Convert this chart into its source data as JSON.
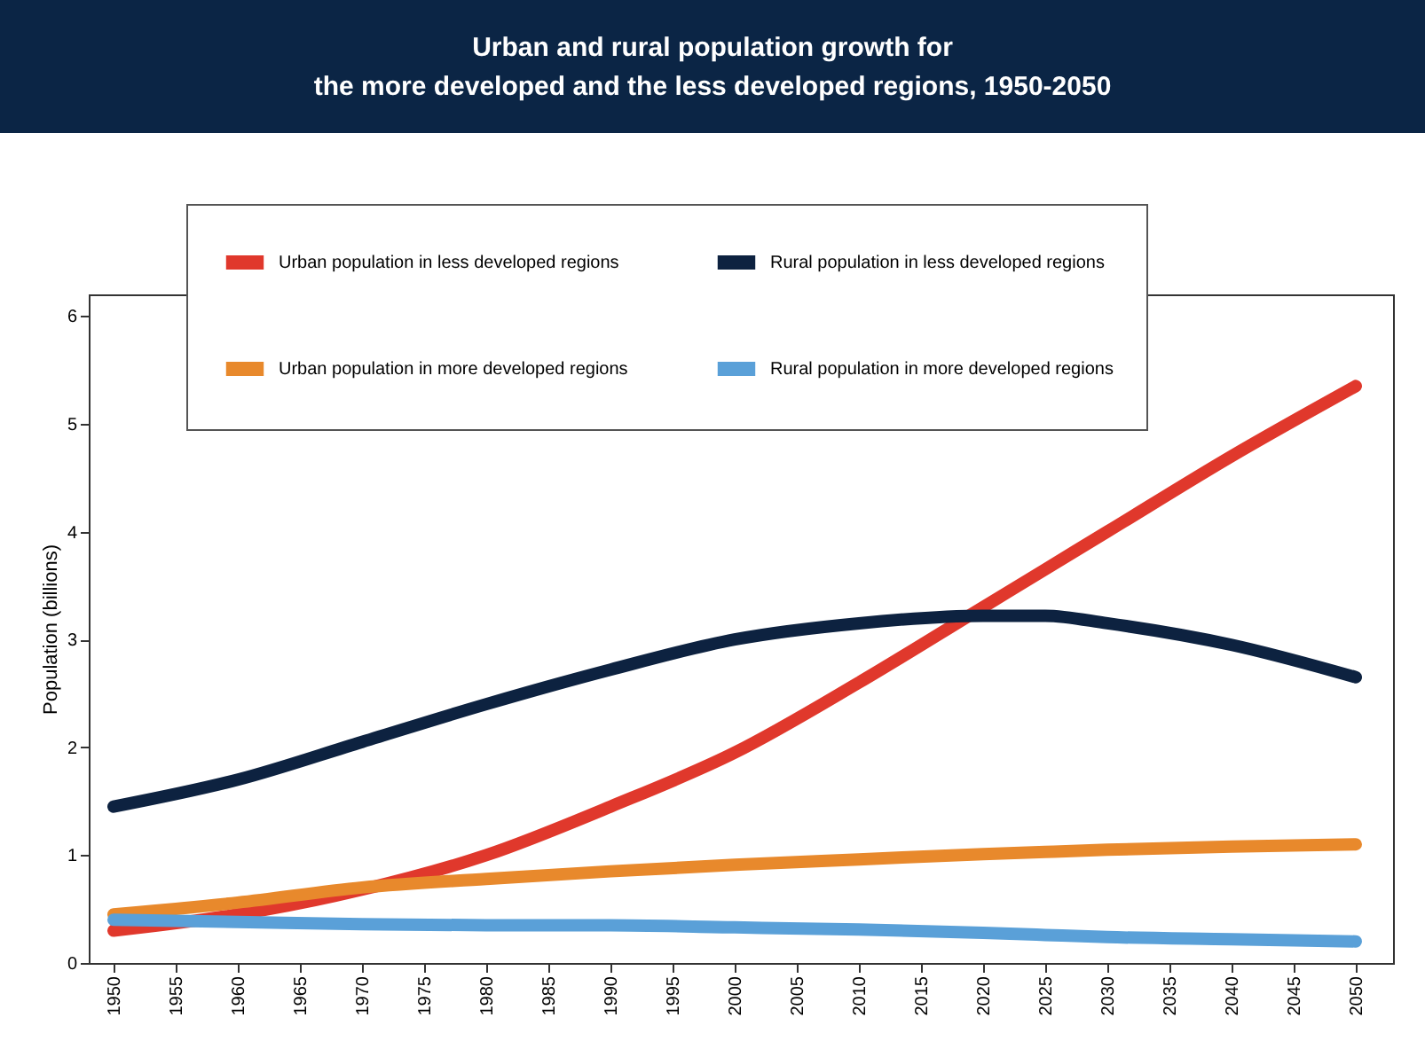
{
  "chart_data": {
    "type": "line",
    "title": [
      "Urban and rural population growth for",
      "the more developed and the less developed regions, 1950-2050"
    ],
    "ylabel": "Population (billions)",
    "x": [
      1950,
      1960,
      1970,
      1980,
      1990,
      2000,
      2010,
      2020,
      2025,
      2030,
      2040,
      2050
    ],
    "series": [
      {
        "name": "Urban population in less developed regions",
        "color": "#e0382c",
        "values": [
          0.3,
          0.45,
          0.68,
          1.0,
          1.45,
          1.95,
          2.6,
          3.3,
          3.65,
          4.0,
          4.7,
          5.35
        ]
      },
      {
        "name": "Rural population in less developed regions",
        "color": "#0d2240",
        "values": [
          1.45,
          1.7,
          2.05,
          2.4,
          2.72,
          3.0,
          3.15,
          3.22,
          3.22,
          3.15,
          2.95,
          2.65
        ]
      },
      {
        "name": "Urban population in more developed regions",
        "color": "#e8892c",
        "values": [
          0.45,
          0.56,
          0.7,
          0.78,
          0.85,
          0.91,
          0.96,
          1.01,
          1.03,
          1.05,
          1.08,
          1.1
        ]
      },
      {
        "name": "Rural population in more developed regions",
        "color": "#5aa0d8",
        "values": [
          0.4,
          0.38,
          0.36,
          0.35,
          0.35,
          0.33,
          0.31,
          0.28,
          0.26,
          0.24,
          0.22,
          0.2
        ]
      }
    ],
    "xlim": [
      1948,
      2053
    ],
    "xticks": [
      1950,
      1955,
      1960,
      1965,
      1970,
      1975,
      1980,
      1985,
      1990,
      1995,
      2000,
      2005,
      2010,
      2015,
      2020,
      2025,
      2030,
      2035,
      2040,
      2045,
      2050
    ],
    "ylim": [
      0,
      6.2
    ],
    "yticks": [
      0,
      1,
      2,
      3,
      4,
      5,
      6
    ],
    "grid": false,
    "legend": "top left",
    "marker": "none",
    "line_style": "solid"
  }
}
